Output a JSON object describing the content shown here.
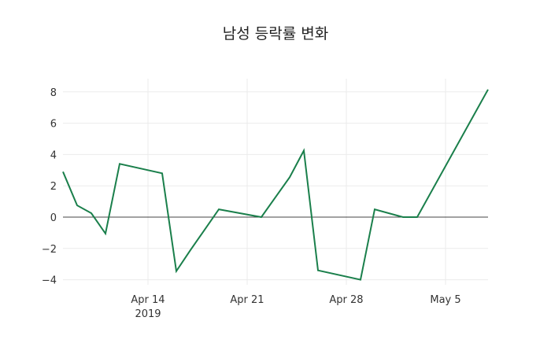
{
  "chart_data": {
    "type": "line",
    "title": "남성 등락률 변화",
    "xlabel": "",
    "ylabel": "",
    "x": [
      "2019-04-08",
      "2019-04-09",
      "2019-04-10",
      "2019-04-11",
      "2019-04-12",
      "2019-04-15",
      "2019-04-16",
      "2019-04-17",
      "2019-04-19",
      "2019-04-22",
      "2019-04-24",
      "2019-04-25",
      "2019-04-26",
      "2019-04-29",
      "2019-04-30",
      "2019-05-02",
      "2019-05-03",
      "2019-05-08"
    ],
    "series": [
      {
        "name": "남성",
        "color": "#1a7f4b",
        "values": [
          2.9,
          0.75,
          0.25,
          -1.05,
          3.4,
          2.8,
          -3.45,
          -2.1,
          0.5,
          0.0,
          2.55,
          4.25,
          -3.4,
          -4.0,
          0.5,
          0.0,
          0.0,
          8.15
        ]
      }
    ],
    "x_ticks": [
      {
        "date": "2019-04-14",
        "label": "Apr 14",
        "sublabel": "2019"
      },
      {
        "date": "2019-04-21",
        "label": "Apr 21"
      },
      {
        "date": "2019-04-28",
        "label": "Apr 28"
      },
      {
        "date": "2019-05-05",
        "label": "May 5"
      }
    ],
    "y_ticks": [
      -4,
      -2,
      0,
      2,
      4,
      6,
      8
    ],
    "ylim": [
      -4.4,
      8.9
    ],
    "xlim": [
      "2019-04-08",
      "2019-05-08"
    ],
    "grid": true,
    "legend": false
  }
}
